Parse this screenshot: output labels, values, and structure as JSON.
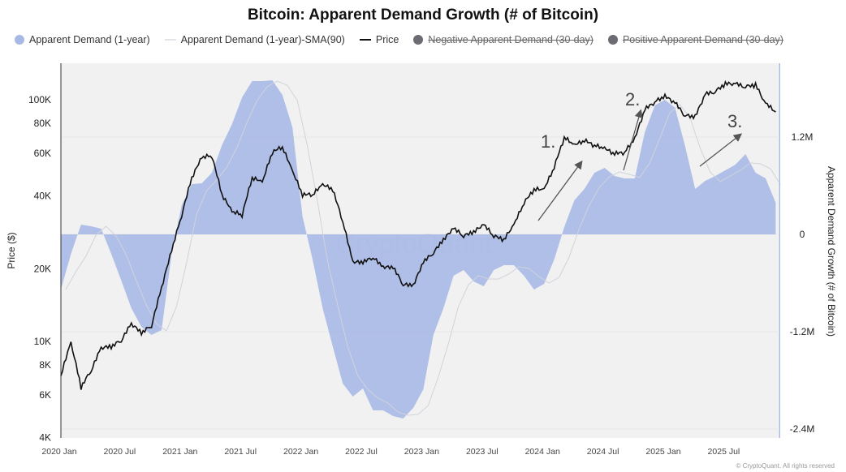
{
  "chart_data": {
    "type": "area",
    "title": "Bitcoin: Apparent Demand Growth (# of Bitcoin)",
    "ylabel_left": "Price ($)",
    "ylabel_right": "Apparent Demand Growth (# of Bitcoin)",
    "left_axis": {
      "scale": "log",
      "range": [
        4000,
        160000
      ],
      "ticks": [
        4000,
        6000,
        8000,
        10000,
        20000,
        40000,
        60000,
        80000,
        100000
      ],
      "tick_labels": [
        "4K",
        "6K",
        "8K",
        "10K",
        "20K",
        "40K",
        "60K",
        "80K",
        "100K"
      ]
    },
    "right_axis": {
      "scale": "linear",
      "range": [
        -2500000,
        2120000
      ],
      "ticks": [
        1200000,
        0,
        -1200000,
        -2400000
      ],
      "tick_labels": [
        "1.2M",
        "0",
        "-1.2M",
        "-2.4M"
      ]
    },
    "x_ticks": [
      "2020-01",
      "2020-07",
      "2021-01",
      "2021-07",
      "2022-01",
      "2022-07",
      "2023-01",
      "2023-07",
      "2024-01",
      "2024-07",
      "2025-01",
      "2025-07"
    ],
    "x_tick_labels": [
      "2020 Jan",
      "2020 Jul",
      "2021 Jan",
      "2021 Jul",
      "2022 Jan",
      "2022 Jul",
      "2023 Jan",
      "2023 Jul",
      "2024 Jan",
      "2024 Jul",
      "2025 Jan",
      "2025 Jul"
    ],
    "x_start": "2020-01",
    "grid": true,
    "legend_position": "top",
    "series": [
      {
        "name": "Apparent Demand (1-year)",
        "type": "area",
        "axis": "right",
        "color": "#a9b9e6",
        "unit": "M BTC",
        "values": [
          -0.68,
          -0.24,
          0.12,
          0.1,
          0.07,
          -0.24,
          -0.57,
          -0.91,
          -1.14,
          -1.24,
          -1.18,
          -0.24,
          0.36,
          0.62,
          0.63,
          0.76,
          1.1,
          1.36,
          1.69,
          1.89,
          1.89,
          1.9,
          1.72,
          1.32,
          0.22,
          -0.31,
          -0.91,
          -1.38,
          -1.84,
          -2.0,
          -1.9,
          -2.17,
          -2.17,
          -2.24,
          -2.27,
          -2.14,
          -1.91,
          -1.24,
          -0.91,
          -0.51,
          -0.44,
          -0.58,
          -0.64,
          -0.44,
          -0.38,
          -0.38,
          -0.51,
          -0.68,
          -0.61,
          -0.31,
          0.09,
          0.42,
          0.56,
          0.76,
          0.82,
          0.72,
          0.69,
          0.69,
          1.26,
          1.59,
          1.66,
          1.56,
          1.09,
          0.56,
          0.66,
          0.72,
          0.79,
          0.86,
          0.99,
          0.76,
          0.69,
          0.39
        ]
      },
      {
        "name": "Apparent Demand (1-year)-SMA(90)",
        "type": "line",
        "axis": "right",
        "color": "#d0d3dc",
        "unit": "M BTC",
        "values": [
          -0.68,
          -0.46,
          -0.27,
          -0.01,
          0.1,
          -0.02,
          -0.25,
          -0.57,
          -0.87,
          -1.1,
          -1.19,
          -0.89,
          -0.35,
          0.25,
          0.54,
          0.67,
          0.83,
          1.07,
          1.38,
          1.65,
          1.82,
          1.89,
          1.84,
          1.65,
          1.09,
          0.41,
          -0.33,
          -0.87,
          -1.38,
          -1.74,
          -1.91,
          -2.02,
          -2.08,
          -2.19,
          -2.23,
          -2.22,
          -2.11,
          -1.76,
          -1.35,
          -0.89,
          -0.62,
          -0.51,
          -0.55,
          -0.55,
          -0.49,
          -0.4,
          -0.42,
          -0.52,
          -0.6,
          -0.53,
          -0.28,
          0.07,
          0.36,
          0.58,
          0.71,
          0.77,
          0.74,
          0.7,
          0.88,
          1.18,
          1.5,
          1.6,
          1.44,
          1.07,
          0.77,
          0.65,
          0.72,
          0.79,
          0.88,
          0.87,
          0.81,
          0.61
        ]
      },
      {
        "name": "Price",
        "type": "line",
        "axis": "left",
        "color": "#111111",
        "unit": "K USD",
        "values": [
          7.2,
          9.8,
          6.4,
          7.5,
          9.3,
          9.4,
          10.0,
          11.7,
          10.7,
          11.5,
          16.5,
          23.5,
          33,
          47,
          57,
          58,
          40,
          34,
          33,
          47,
          45,
          60,
          63,
          50,
          40,
          40,
          44,
          42,
          31,
          21,
          21,
          22,
          20,
          20,
          17,
          16.8,
          21,
          23,
          26,
          29,
          27,
          28,
          30,
          27,
          26,
          30,
          37,
          42,
          42,
          52,
          69,
          64,
          67,
          64,
          62,
          59,
          60,
          68,
          90,
          97,
          102,
          96,
          85,
          84,
          104,
          107,
          115,
          115,
          112,
          114,
          95,
          89
        ]
      },
      {
        "name": "Negative Apparent Demand (30-day)",
        "hidden": true,
        "color": "#6b6b73"
      },
      {
        "name": "Positive Apparent Demand (30-day)",
        "hidden": true,
        "color": "#6b6b73"
      }
    ],
    "annotations": [
      {
        "text": "1.",
        "from": "2024-01",
        "to": "2024-05"
      },
      {
        "text": "2.",
        "from": "2024-09",
        "to": "2024-11"
      },
      {
        "text": "3.",
        "from": "2025-04",
        "to": "2025-08"
      }
    ],
    "watermark": "CryptoQuant"
  },
  "footer": {
    "copyright": "© CryptoQuant. All rights reserved"
  }
}
